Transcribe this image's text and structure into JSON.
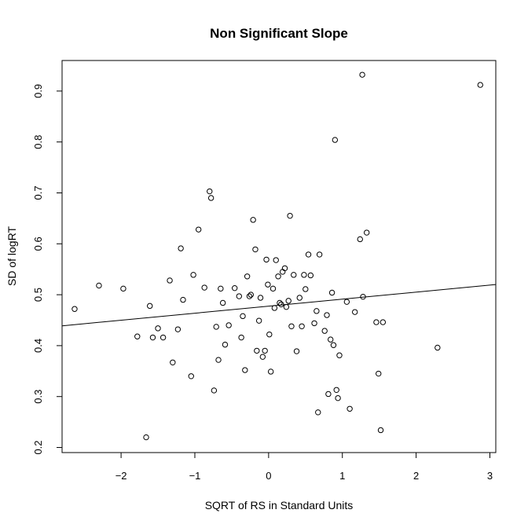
{
  "chart_data": {
    "type": "scatter",
    "title": "Non Significant Slope",
    "xlabel": "SQRT of RS in Standard Units",
    "ylabel": "SD of logRT",
    "xlim": [
      -2.8,
      3.08
    ],
    "ylim": [
      0.19,
      0.96
    ],
    "xticks": [
      -2,
      -1,
      0,
      1,
      2,
      3
    ],
    "yticks": [
      0.2,
      0.3,
      0.4,
      0.5,
      0.6,
      0.7,
      0.8,
      0.9
    ],
    "grid": false,
    "marker": "open-circle",
    "regression_line": {
      "slope": 0.0138,
      "intercept": 0.4775
    },
    "points": [
      {
        "x": -2.63,
        "y": 0.472
      },
      {
        "x": -2.3,
        "y": 0.518
      },
      {
        "x": -1.97,
        "y": 0.512
      },
      {
        "x": -1.78,
        "y": 0.418
      },
      {
        "x": -1.66,
        "y": 0.22
      },
      {
        "x": -1.61,
        "y": 0.478
      },
      {
        "x": -1.57,
        "y": 0.416
      },
      {
        "x": -1.5,
        "y": 0.434
      },
      {
        "x": -1.43,
        "y": 0.416
      },
      {
        "x": -1.34,
        "y": 0.528
      },
      {
        "x": -1.3,
        "y": 0.367
      },
      {
        "x": -1.23,
        "y": 0.432
      },
      {
        "x": -1.19,
        "y": 0.591
      },
      {
        "x": -1.16,
        "y": 0.49
      },
      {
        "x": -1.05,
        "y": 0.34
      },
      {
        "x": -1.02,
        "y": 0.539
      },
      {
        "x": -0.95,
        "y": 0.628
      },
      {
        "x": -0.87,
        "y": 0.514
      },
      {
        "x": -0.8,
        "y": 0.703
      },
      {
        "x": -0.78,
        "y": 0.69
      },
      {
        "x": -0.74,
        "y": 0.312
      },
      {
        "x": -0.71,
        "y": 0.437
      },
      {
        "x": -0.68,
        "y": 0.372
      },
      {
        "x": -0.65,
        "y": 0.512
      },
      {
        "x": -0.62,
        "y": 0.484
      },
      {
        "x": -0.59,
        "y": 0.402
      },
      {
        "x": -0.54,
        "y": 0.44
      },
      {
        "x": -0.46,
        "y": 0.513
      },
      {
        "x": -0.4,
        "y": 0.497
      },
      {
        "x": -0.37,
        "y": 0.416
      },
      {
        "x": -0.35,
        "y": 0.458
      },
      {
        "x": -0.32,
        "y": 0.352
      },
      {
        "x": -0.29,
        "y": 0.536
      },
      {
        "x": -0.26,
        "y": 0.497
      },
      {
        "x": -0.24,
        "y": 0.5
      },
      {
        "x": -0.21,
        "y": 0.647
      },
      {
        "x": -0.18,
        "y": 0.589
      },
      {
        "x": -0.16,
        "y": 0.39
      },
      {
        "x": -0.13,
        "y": 0.449
      },
      {
        "x": -0.11,
        "y": 0.494
      },
      {
        "x": -0.08,
        "y": 0.378
      },
      {
        "x": -0.05,
        "y": 0.39
      },
      {
        "x": -0.03,
        "y": 0.569
      },
      {
        "x": -0.01,
        "y": 0.52
      },
      {
        "x": 0.01,
        "y": 0.422
      },
      {
        "x": 0.03,
        "y": 0.349
      },
      {
        "x": 0.06,
        "y": 0.512
      },
      {
        "x": 0.08,
        "y": 0.474
      },
      {
        "x": 0.1,
        "y": 0.568
      },
      {
        "x": 0.13,
        "y": 0.536
      },
      {
        "x": 0.15,
        "y": 0.484
      },
      {
        "x": 0.17,
        "y": 0.481
      },
      {
        "x": 0.19,
        "y": 0.545
      },
      {
        "x": 0.22,
        "y": 0.552
      },
      {
        "x": 0.24,
        "y": 0.476
      },
      {
        "x": 0.27,
        "y": 0.488
      },
      {
        "x": 0.29,
        "y": 0.655
      },
      {
        "x": 0.31,
        "y": 0.438
      },
      {
        "x": 0.34,
        "y": 0.539
      },
      {
        "x": 0.38,
        "y": 0.389
      },
      {
        "x": 0.42,
        "y": 0.494
      },
      {
        "x": 0.45,
        "y": 0.438
      },
      {
        "x": 0.48,
        "y": 0.539
      },
      {
        "x": 0.5,
        "y": 0.511
      },
      {
        "x": 0.54,
        "y": 0.579
      },
      {
        "x": 0.57,
        "y": 0.538
      },
      {
        "x": 0.62,
        "y": 0.444
      },
      {
        "x": 0.65,
        "y": 0.468
      },
      {
        "x": 0.67,
        "y": 0.269
      },
      {
        "x": 0.69,
        "y": 0.579
      },
      {
        "x": 0.76,
        "y": 0.429
      },
      {
        "x": 0.79,
        "y": 0.46
      },
      {
        "x": 0.81,
        "y": 0.305
      },
      {
        "x": 0.84,
        "y": 0.412
      },
      {
        "x": 0.86,
        "y": 0.504
      },
      {
        "x": 0.88,
        "y": 0.401
      },
      {
        "x": 0.9,
        "y": 0.804
      },
      {
        "x": 0.92,
        "y": 0.313
      },
      {
        "x": 0.94,
        "y": 0.297
      },
      {
        "x": 0.96,
        "y": 0.381
      },
      {
        "x": 1.06,
        "y": 0.486
      },
      {
        "x": 1.1,
        "y": 0.276
      },
      {
        "x": 1.17,
        "y": 0.466
      },
      {
        "x": 1.24,
        "y": 0.609
      },
      {
        "x": 1.27,
        "y": 0.932
      },
      {
        "x": 1.28,
        "y": 0.496
      },
      {
        "x": 1.33,
        "y": 0.622
      },
      {
        "x": 1.46,
        "y": 0.446
      },
      {
        "x": 1.49,
        "y": 0.345
      },
      {
        "x": 1.52,
        "y": 0.234
      },
      {
        "x": 1.55,
        "y": 0.446
      },
      {
        "x": 2.29,
        "y": 0.396
      },
      {
        "x": 2.87,
        "y": 0.912
      }
    ]
  }
}
